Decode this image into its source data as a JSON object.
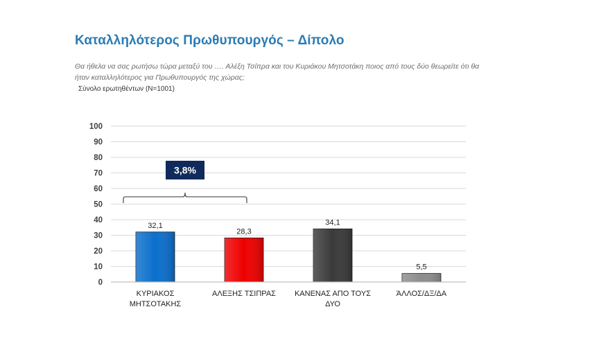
{
  "page": {
    "title": "Καταλληλότερος Πρωθυπουργός – Δίπολο",
    "question": "Θα ήθελα να σας ρωτήσω τώρα μεταξύ του …. Αλέξη Τσίπρα και του Κυριάκου Μητσοτάκη ποιος από τους δύο θεωρείτε ότι θα ήταν καταλληλότερος για Πρωθυπουργός της χώρας;",
    "base": "Σύνολο ερωτηθέντων (N=1001)"
  },
  "chart_data": {
    "type": "bar",
    "title": "",
    "xlabel": "",
    "ylabel": "",
    "ylim": [
      0,
      100
    ],
    "yticks": [
      0,
      10,
      20,
      30,
      40,
      50,
      60,
      70,
      80,
      90,
      100
    ],
    "grid": true,
    "categories": [
      [
        "ΚΥΡΙΑΚΟΣ",
        "ΜΗΤΣΟΤΑΚΗΣ"
      ],
      [
        "ΑΛΕΞΗΣ ΤΣΙΠΡΑΣ"
      ],
      [
        "ΚΑΝΕΝΑΣ ΑΠΟ ΤΟΥΣ",
        "ΔΥΟ"
      ],
      [
        "ΆΛΛΟΣ/ΔΞ/ΔΑ"
      ]
    ],
    "values": [
      32.1,
      28.3,
      34.1,
      5.5
    ],
    "value_labels": [
      "32,1",
      "28,3",
      "34,1",
      "5,5"
    ],
    "colors": [
      "#0b6fcc",
      "#ee0000",
      "#3a3a3a",
      "#8c8c8c"
    ],
    "annotation": {
      "text": "3,8%",
      "between": [
        0,
        1
      ],
      "box_color": "#102a5c"
    }
  }
}
